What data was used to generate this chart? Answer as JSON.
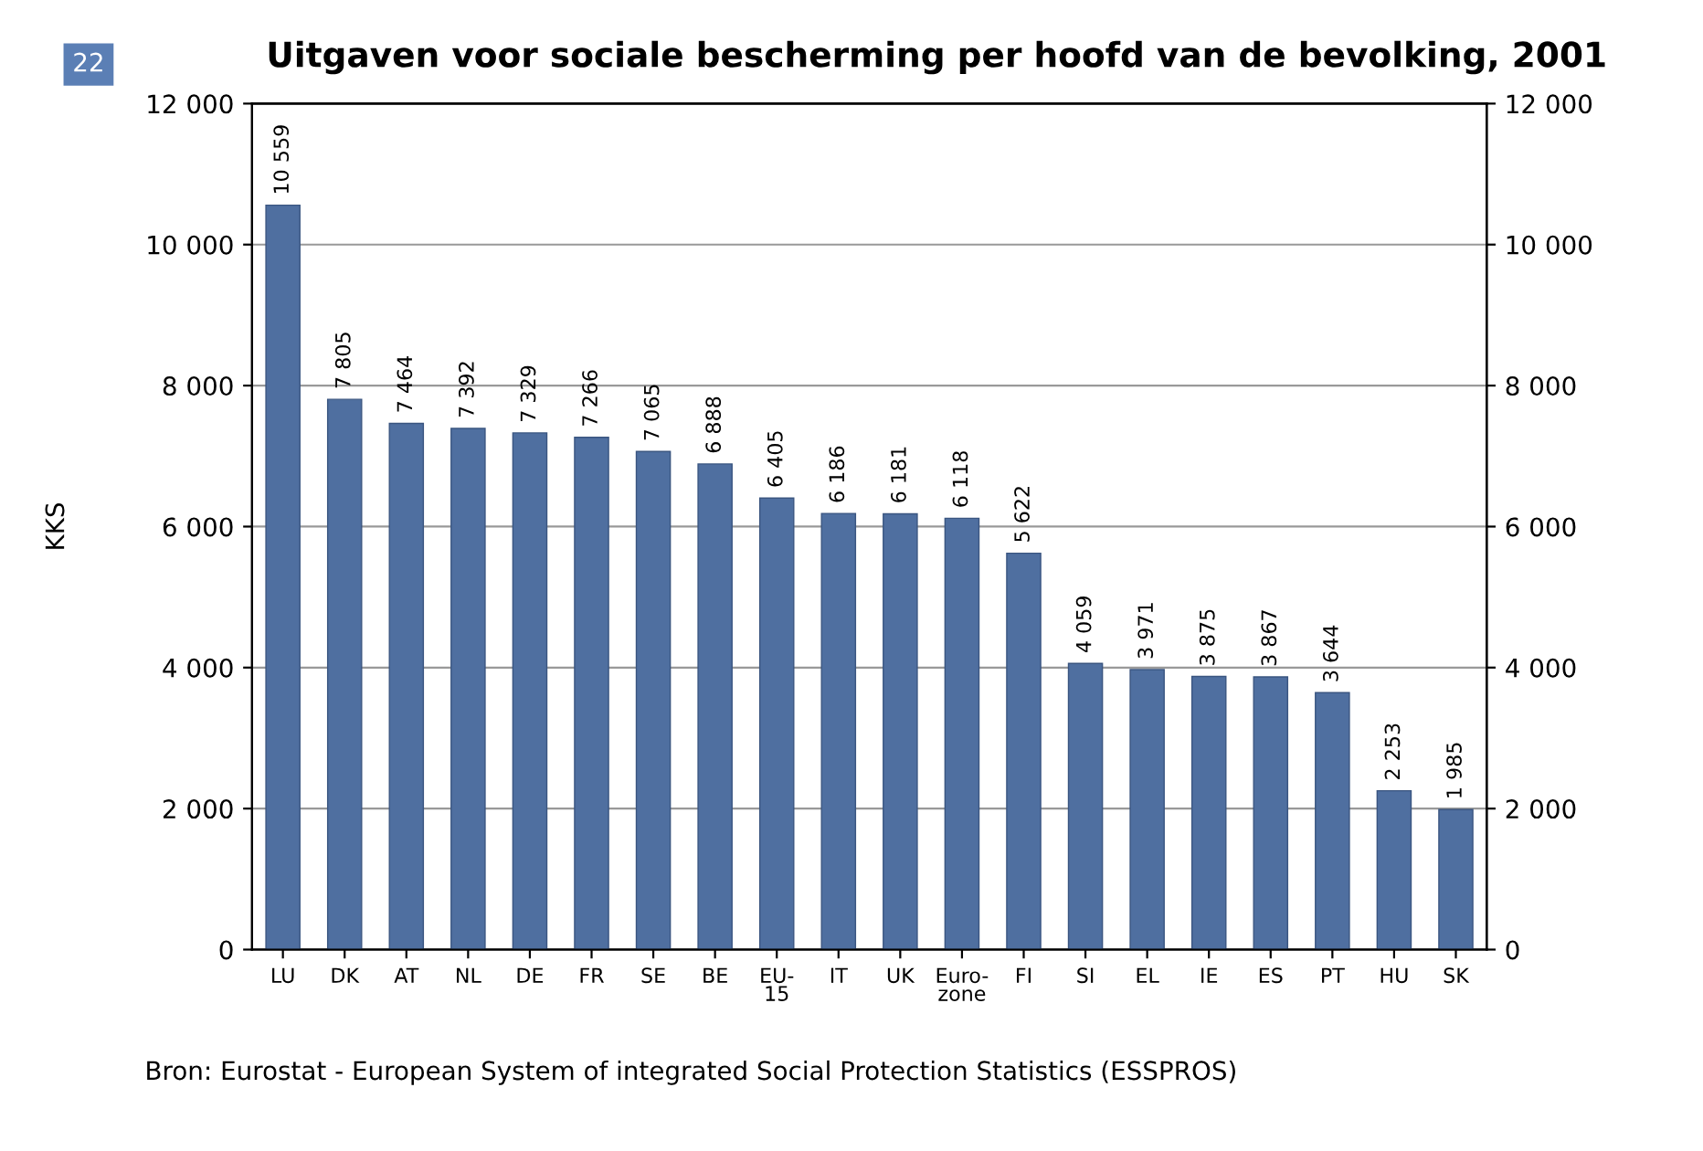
{
  "chart_data": {
    "type": "bar",
    "title": "Uitgaven voor sociale bescherming per hoofd van de bevolking, 2001",
    "ylabel": "KKS",
    "categories": [
      "LU",
      "DK",
      "AT",
      "NL",
      "DE",
      "FR",
      "SE",
      "BE",
      "EU-\n15",
      "IT",
      "UK",
      "Euro-\nzone",
      "FI",
      "SI",
      "EL",
      "IE",
      "ES",
      "PT",
      "HU",
      "SK"
    ],
    "values": [
      10559,
      7805,
      7464,
      7392,
      7329,
      7266,
      7065,
      6888,
      6405,
      6186,
      6181,
      6118,
      5622,
      4059,
      3971,
      3875,
      3867,
      3644,
      2253,
      1985
    ],
    "value_labels": [
      "10 559",
      "7 805",
      "7 464",
      "7 392",
      "7 329",
      "7 266",
      "7 065",
      "6 888",
      "6 405",
      "6 186",
      "6 181",
      "6 118",
      "5 622",
      "4 059",
      "3 971",
      "3 875",
      "3 867",
      "3 644",
      "2 253",
      "1 985"
    ],
    "color": "#4f6fa0",
    "ylim": [
      0,
      12000
    ],
    "yticks": [
      0,
      {
        "value": 2000,
        "label": "2 000"
      },
      {
        "value": 4000,
        "label": "4 000"
      },
      {
        "value": 6000,
        "label": "6 000"
      },
      {
        "value": 8000,
        "label": "8 000"
      },
      {
        "value": 10000,
        "label": "10 000"
      },
      {
        "value": 12000,
        "label": "12 000"
      }
    ],
    "y2lim": [
      0,
      12000
    ],
    "y2ticks": [
      0,
      {
        "value": 2000,
        "label": "2 000"
      },
      {
        "value": 4000,
        "label": "4 000"
      },
      {
        "value": 6000,
        "label": "6 000"
      },
      {
        "value": 8000,
        "label": "8 000"
      },
      {
        "value": 10000,
        "label": "10 000"
      },
      {
        "value": 12000,
        "label": "12 000"
      }
    ],
    "grid": "y",
    "annotations": [
      "22",
      "Bron: Eurostat - European System of integrated Social Protection Statistics (ESSPROS)"
    ]
  }
}
